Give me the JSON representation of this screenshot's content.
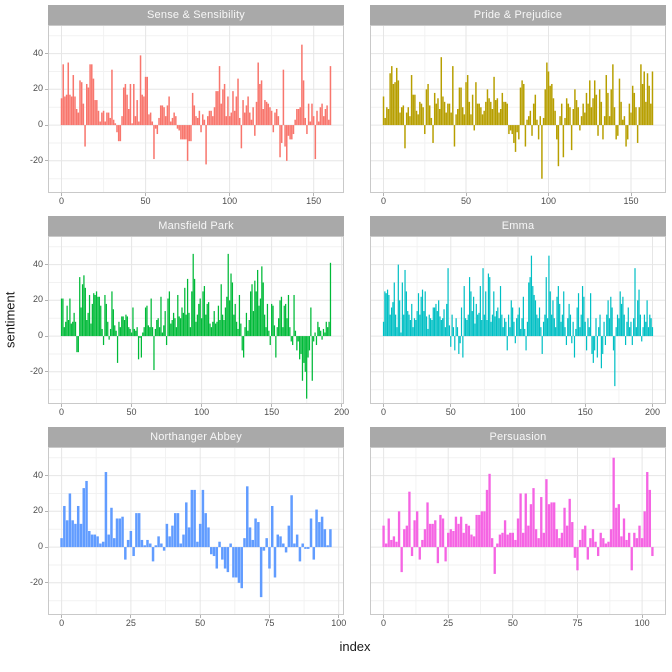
{
  "style": {
    "strip_fill": "#a9a9a9",
    "strip_text_color": "#f7f7f7",
    "panel_border": "#c9c9c9",
    "grid_major": "#e6e6e6",
    "grid_minor": "#f2f2f2",
    "tick_text_color": "#4d4d4d",
    "tick_mark_color": "#b3b3b3"
  },
  "chart_data": {
    "type": "bar",
    "title": "",
    "xlabel": "index",
    "ylabel": "sentiment",
    "legend": "none",
    "grid": true,
    "y_ticks": [
      -20,
      0,
      20,
      40
    ],
    "y_minor": [
      -30,
      -10,
      10,
      30,
      50
    ],
    "ylim": [
      -38,
      56
    ],
    "facets": [
      {
        "title": "Sense & Sensibility",
        "color": "#F8766D",
        "x_ticks": [
          0,
          50,
          100,
          150
        ],
        "values": [
          15,
          34,
          16,
          17,
          35,
          17,
          16,
          28,
          16,
          9,
          7,
          25,
          24,
          12,
          -12,
          23,
          21,
          34,
          34,
          26,
          14,
          14,
          8,
          2,
          7,
          8,
          2,
          7,
          7,
          4,
          31,
          3,
          1,
          -4,
          -9,
          -9,
          5,
          21,
          23,
          17,
          9,
          23,
          1,
          23,
          5,
          14,
          2,
          39,
          17,
          16,
          27,
          27,
          6,
          7,
          2,
          -19,
          -2,
          -5,
          4,
          11,
          11,
          10,
          5,
          11,
          16,
          2,
          4,
          7,
          5,
          -2,
          -3,
          -8,
          -8,
          -8,
          -8,
          -20,
          -9,
          -9,
          18,
          11,
          5,
          4,
          8,
          -4,
          6,
          3,
          -22,
          5,
          8,
          8,
          5,
          10,
          19,
          19,
          33,
          12,
          20,
          23,
          5,
          16,
          5,
          7,
          19,
          8,
          16,
          26,
          4,
          -13,
          14,
          7,
          11,
          16,
          7,
          3,
          10,
          -6,
          13,
          35,
          23,
          25,
          9,
          14,
          13,
          12,
          10,
          8,
          -4,
          7,
          9,
          5,
          -18,
          -10,
          31,
          -12,
          -20,
          -6,
          -8,
          -8,
          -5,
          3,
          9,
          9,
          10,
          45,
          25,
          4,
          -5,
          12,
          2,
          12,
          5,
          -19,
          8,
          2,
          10,
          12,
          5,
          9,
          11,
          3,
          33
        ]
      },
      {
        "title": "Pride & Prejudice",
        "color": "#B79F00",
        "x_ticks": [
          0,
          50,
          100,
          150
        ],
        "values": [
          16,
          4,
          10,
          9,
          29,
          33,
          23,
          24,
          32,
          25,
          7,
          10,
          11,
          -13,
          7,
          10,
          5,
          28,
          17,
          17,
          8,
          6,
          13,
          12,
          10,
          -5,
          20,
          23,
          11,
          4,
          -10,
          18,
          12,
          15,
          9,
          38,
          16,
          13,
          7,
          12,
          12,
          7,
          33,
          -12,
          6,
          9,
          21,
          21,
          10,
          6,
          24,
          28,
          13,
          6,
          17,
          -3,
          24,
          12,
          12,
          10,
          6,
          8,
          13,
          20,
          15,
          13,
          9,
          27,
          14,
          15,
          7,
          9,
          18,
          13,
          13,
          12,
          -5,
          -3,
          -5,
          -10,
          -15,
          -4,
          -8,
          21,
          25,
          23,
          -12,
          3,
          5,
          8,
          -6,
          12,
          17,
          3,
          -8,
          5,
          -30,
          4,
          20,
          35,
          30,
          22,
          23,
          15,
          8,
          -8,
          -23,
          5,
          12,
          -18,
          4,
          15,
          12,
          10,
          -14,
          9,
          20,
          14,
          10,
          -3,
          5,
          12,
          7,
          18,
          12,
          25,
          10,
          15,
          25,
          17,
          -6,
          20,
          13,
          -8,
          5,
          28,
          18,
          5,
          20,
          34,
          10,
          -8,
          -6,
          26,
          13,
          3,
          5,
          -12,
          -8,
          12,
          7,
          22,
          18,
          10,
          -10,
          10,
          34,
          23,
          30,
          13,
          29,
          22,
          12,
          30
        ]
      },
      {
        "title": "Mansfield Park",
        "color": "#00BA38",
        "x_ticks": [
          0,
          50,
          100,
          150,
          200
        ],
        "values": [
          21,
          21,
          5,
          8,
          17,
          9,
          21,
          7,
          8,
          13,
          8,
          -9,
          -9,
          33,
          16,
          29,
          34,
          27,
          9,
          13,
          23,
          7,
          18,
          24,
          23,
          25,
          22,
          22,
          17,
          4,
          -5,
          23,
          18,
          8,
          -2,
          4,
          25,
          15,
          6,
          3,
          -15,
          8,
          5,
          11,
          11,
          9,
          12,
          11,
          5,
          4,
          2,
          16,
          4,
          3,
          5,
          -13,
          -1,
          -12,
          2,
          5,
          16,
          17,
          6,
          5,
          21,
          5,
          -19,
          4,
          9,
          10,
          5,
          22,
          2,
          6,
          14,
          -5,
          21,
          25,
          7,
          9,
          13,
          10,
          5,
          23,
          11,
          10,
          16,
          13,
          27,
          12,
          32,
          13,
          5,
          25,
          46,
          32,
          8,
          12,
          18,
          21,
          10,
          25,
          28,
          12,
          18,
          19,
          7,
          5,
          8,
          14,
          7,
          8,
          17,
          9,
          29,
          12,
          9,
          16,
          22,
          46,
          20,
          35,
          30,
          12,
          18,
          8,
          4,
          23,
          7,
          -8,
          -12,
          5,
          13,
          3,
          9,
          25,
          29,
          14,
          31,
          25,
          37,
          17,
          21,
          39,
          30,
          12,
          5,
          18,
          3,
          -5,
          18,
          17,
          6,
          -12,
          5,
          10,
          20,
          22,
          5,
          17,
          18,
          10,
          23,
          5,
          -3,
          -5,
          23,
          3,
          -8,
          -3,
          -13,
          -10,
          -25,
          -15,
          -20,
          -35,
          -12,
          -8,
          16,
          -25,
          -3,
          2,
          -5,
          8,
          5,
          3,
          -2,
          4,
          2,
          8,
          5,
          8,
          41
        ]
      },
      {
        "title": "Emma",
        "color": "#00BFC4",
        "x_ticks": [
          0,
          50,
          100,
          150,
          200
        ],
        "values": [
          8,
          25,
          24,
          26,
          23,
          12,
          16,
          19,
          30,
          12,
          5,
          40,
          20,
          2,
          30,
          12,
          37,
          25,
          14,
          12,
          9,
          18,
          5,
          10,
          9,
          14,
          24,
          12,
          22,
          26,
          14,
          25,
          11,
          4,
          12,
          10,
          9,
          16,
          16,
          18,
          14,
          20,
          11,
          9,
          10,
          15,
          5,
          18,
          38,
          6,
          -6,
          12,
          5,
          -8,
          10,
          5,
          -10,
          -4,
          16,
          -12,
          28,
          10,
          9,
          12,
          33,
          25,
          14,
          22,
          7,
          18,
          12,
          13,
          28,
          9,
          38,
          12,
          25,
          9,
          35,
          33,
          8,
          12,
          25,
          11,
          14,
          16,
          10,
          28,
          12,
          5,
          10,
          8,
          -8,
          12,
          5,
          20,
          16,
          8,
          -4,
          10,
          12,
          16,
          4,
          10,
          22,
          4,
          -8,
          8,
          30,
          33,
          45,
          28,
          23,
          20,
          12,
          10,
          16,
          5,
          -10,
          8,
          12,
          33,
          10,
          45,
          25,
          12,
          20,
          10,
          5,
          22,
          28,
          18,
          8,
          12,
          25,
          5,
          -5,
          10,
          18,
          12,
          -4,
          8,
          -12,
          4,
          16,
          24,
          5,
          12,
          28,
          22,
          8,
          -8,
          10,
          5,
          24,
          -10,
          -15,
          -8,
          10,
          -12,
          5,
          12,
          -18,
          -10,
          8,
          -5,
          12,
          20,
          10,
          22,
          16,
          -8,
          -28,
          5,
          12,
          10,
          25,
          18,
          22,
          12,
          -5,
          8,
          16,
          5,
          8,
          -5,
          10,
          38,
          5,
          20,
          26,
          12,
          -3,
          5,
          12,
          8,
          20,
          5,
          12,
          10,
          5
        ]
      },
      {
        "title": "Northanger Abbey",
        "color": "#619CFF",
        "x_ticks": [
          0,
          25,
          50,
          75,
          100
        ],
        "values": [
          5,
          23,
          15,
          30,
          15,
          13,
          23,
          13,
          33,
          37,
          9,
          7,
          7,
          6,
          2,
          3,
          42,
          7,
          22,
          5,
          16,
          16,
          17,
          -7,
          4,
          9,
          -5,
          19,
          19,
          4,
          1,
          4,
          2,
          -8,
          1,
          6,
          2,
          -2,
          13,
          6,
          12,
          19,
          19,
          2,
          7,
          25,
          11,
          32,
          32,
          3,
          13,
          32,
          19,
          11,
          -4,
          -5,
          -12,
          3,
          -7,
          -12,
          -14,
          2,
          -17,
          -17,
          -20,
          -23,
          5,
          34,
          11,
          4,
          16,
          14,
          -28,
          -2,
          5,
          -12,
          23,
          -17,
          7,
          6,
          2,
          -3,
          12,
          29,
          2,
          7,
          -8,
          2,
          -1,
          -1,
          16,
          -7,
          21,
          14,
          17,
          10,
          1,
          10
        ]
      },
      {
        "title": "Persuasion",
        "color": "#F564E3",
        "x_ticks": [
          0,
          25,
          50,
          75,
          100
        ],
        "values": [
          12,
          2,
          16,
          4,
          6,
          3,
          20,
          -14,
          10,
          12,
          31,
          -5,
          15,
          20,
          -7,
          4,
          10,
          25,
          13,
          13,
          15,
          -9,
          18,
          16,
          -8,
          8,
          10,
          9,
          17,
          13,
          17,
          8,
          13,
          12,
          7,
          6,
          18,
          18,
          20,
          20,
          32,
          41,
          5,
          -15,
          2,
          7,
          8,
          15,
          7,
          8,
          8,
          4,
          16,
          30,
          8,
          30,
          12,
          24,
          33,
          10,
          5,
          28,
          8,
          38,
          24,
          25,
          25,
          10,
          5,
          8,
          22,
          12,
          27,
          14,
          -6,
          -13,
          4,
          10,
          12,
          -7,
          5,
          10,
          3,
          -5,
          8,
          5,
          2,
          3,
          10,
          50,
          22,
          24,
          6,
          16,
          4,
          8,
          -13,
          8,
          5,
          12,
          5,
          20,
          42,
          32,
          -5
        ]
      }
    ]
  }
}
